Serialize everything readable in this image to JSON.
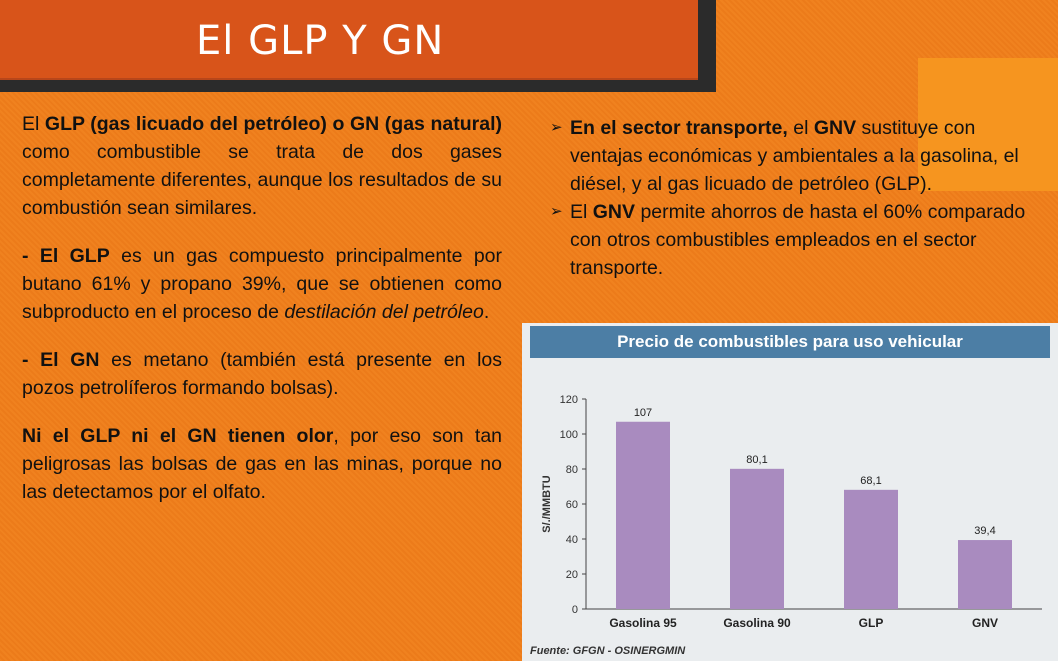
{
  "slide": {
    "title": "El GLP Y GN"
  },
  "left": {
    "p1_b1": "El ",
    "p1_s1": "GLP (gas licuado del petróleo) o GN (gas natural)",
    "p1_t1": " como combustible se trata de dos gases completamente diferentes, aunque los resultados de su combustión sean similares.",
    "p2_s1": "- El GLP",
    "p2_t1": " es un gas compuesto principalmente por butano 61% y propano 39%, que se obtienen como subproducto en el proceso de ",
    "p2_i1": "destilación del petróleo",
    "p2_t2": ".",
    "p3_s1": "- El GN",
    "p3_t1": " es metano (también está presente en los pozos petrolíferos formando bolsas).",
    "p4_s1": "Ni el GLP ni el GN tienen olor",
    "p4_t1": ", por eso son tan peligrosas las bolsas de gas en las minas, porque no las detectamos por el olfato."
  },
  "right": {
    "arrow": "➢",
    "b1_s1": "En el sector transporte,",
    "b1_t1": " el ",
    "b1_s2": "GNV",
    "b1_t2": " sustituye con ventajas económicas y ambientales a la gasolina, el diésel, y al gas licuado de petróleo (GLP).",
    "b2_t1": "El ",
    "b2_s1": "GNV",
    "b2_t2": " permite ahorros de hasta el 60% comparado con otros combustibles empleados en el sector transporte."
  },
  "colors": {
    "bar": "#a98bbf",
    "axis": "#444444",
    "header": "#4c7ea5"
  },
  "chart_data": {
    "type": "bar",
    "title": "Precio de combustibles para uso vehicular",
    "ylabel": "S/./MMBTU",
    "xlabel": "",
    "categories": [
      "Gasolina 95",
      "Gasolina 90",
      "GLP",
      "GNV"
    ],
    "values": [
      107,
      80.1,
      68.1,
      39.4
    ],
    "value_labels": [
      "107",
      "80,1",
      "68,1",
      "39,4"
    ],
    "yticks": [
      0,
      20,
      40,
      60,
      80,
      100,
      120
    ],
    "ylim": [
      0,
      120
    ],
    "grid": false,
    "source": "Fuente: GFGN - OSINERGMIN"
  }
}
